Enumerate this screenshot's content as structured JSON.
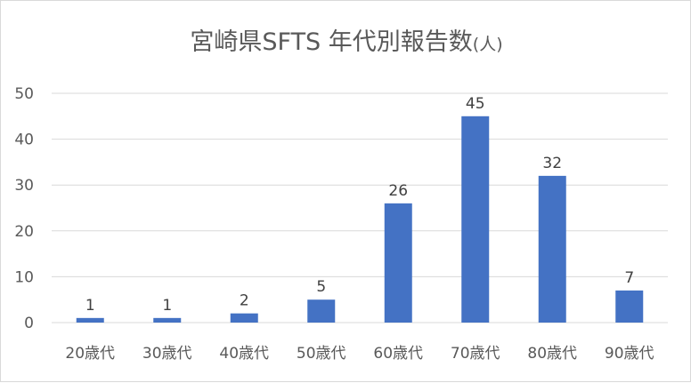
{
  "chart_data": {
    "type": "bar",
    "title": "宮崎県SFTS 年代別報告数",
    "title_unit": "(人)",
    "xlabel": "",
    "ylabel": "",
    "categories": [
      "20歳代",
      "30歳代",
      "40歳代",
      "50歳代",
      "60歳代",
      "70歳代",
      "80歳代",
      "90歳代"
    ],
    "values": [
      1,
      1,
      2,
      5,
      26,
      45,
      32,
      7
    ],
    "ylim": [
      0,
      50
    ],
    "yticks": [
      0,
      10,
      20,
      30,
      40,
      50
    ],
    "grid": true,
    "legend": "none",
    "data_labels": true,
    "bar_color": "#4472c4",
    "grid_color": "#d9d9d9",
    "text_color": "#595959"
  }
}
